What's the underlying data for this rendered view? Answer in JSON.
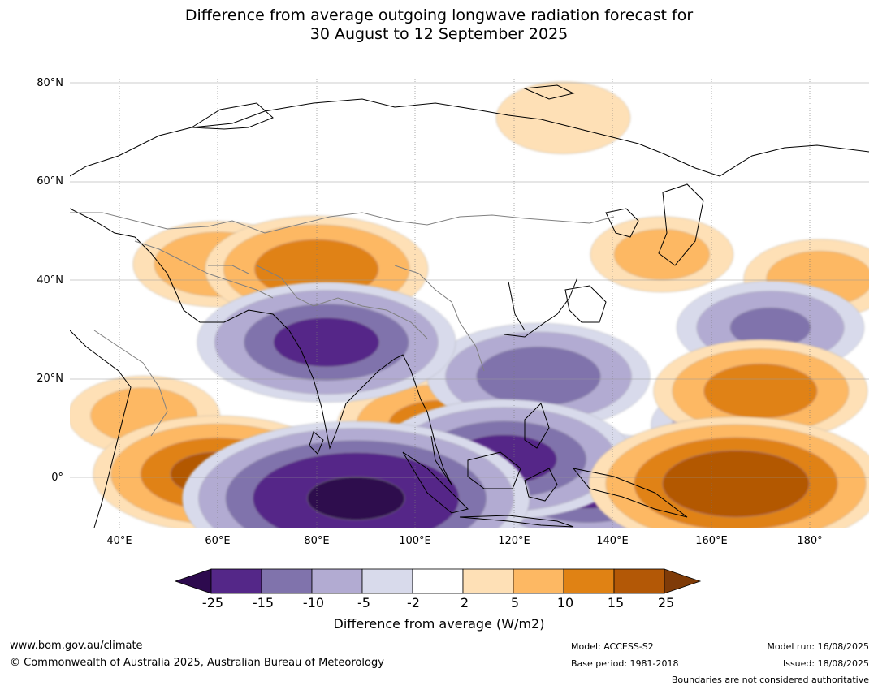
{
  "title": {
    "line1": "Difference from average outgoing longwave radiation forecast for",
    "line2": "30 August to 12 September 2025"
  },
  "map": {
    "type": "contour",
    "lon_range": [
      30,
      192
    ],
    "lat_range": [
      -11,
      81
    ],
    "x_ticks": [
      "40°E",
      "60°E",
      "80°E",
      "100°E",
      "120°E",
      "140°E",
      "160°E",
      "180°"
    ],
    "y_ticks": [
      "80°N",
      "60°N",
      "40°N",
      "20°N",
      "0°"
    ],
    "anomalies": [
      {
        "lon": 82,
        "lat": 27,
        "value": -18
      },
      {
        "lon": 88,
        "lat": -5,
        "value": -28
      },
      {
        "lon": 125,
        "lat": 20,
        "value": -14
      },
      {
        "lon": 118,
        "lat": 3,
        "value": -18
      },
      {
        "lon": 135,
        "lat": -3,
        "value": -16
      },
      {
        "lon": 172,
        "lat": 30,
        "value": -10
      },
      {
        "lon": 165,
        "lat": 10,
        "value": -8
      },
      {
        "lon": 165,
        "lat": -2,
        "value": 22
      },
      {
        "lon": 60,
        "lat": 0,
        "value": 17
      },
      {
        "lon": 80,
        "lat": 42,
        "value": 14
      },
      {
        "lon": 105,
        "lat": 10,
        "value": 12
      },
      {
        "lon": 170,
        "lat": 17,
        "value": 13
      },
      {
        "lon": 60,
        "lat": 43,
        "value": 8
      },
      {
        "lon": 182,
        "lat": 40,
        "value": 6
      },
      {
        "lon": 130,
        "lat": 73,
        "value": 4
      },
      {
        "lon": 150,
        "lat": 45,
        "value": 5
      },
      {
        "lon": 45,
        "lat": 12,
        "value": 6
      }
    ]
  },
  "colorbar": {
    "levels": [
      "-25",
      "-15",
      "-10",
      "-5",
      "-2",
      "2",
      "5",
      "10",
      "15",
      "25"
    ],
    "colors": [
      "#2d0a4e",
      "#542788",
      "#8073ac",
      "#b2abd2",
      "#d8daeb",
      "#ffffff",
      "#fee0b6",
      "#fdb863",
      "#e08214",
      "#b35806",
      "#7f3b08"
    ],
    "label": "Difference from average (W/m2)"
  },
  "footer": {
    "website": "www.bom.gov.au/climate",
    "copyright": "© Commonwealth of Australia 2025, Australian Bureau of Meteorology",
    "model": "Model: ACCESS-S2",
    "base_period": "Base period: 1981-2018",
    "model_run": "Model run: 16/08/2025",
    "issued": "Issued: 18/08/2025",
    "disclaimer": "Boundaries are not considered authoritative"
  }
}
